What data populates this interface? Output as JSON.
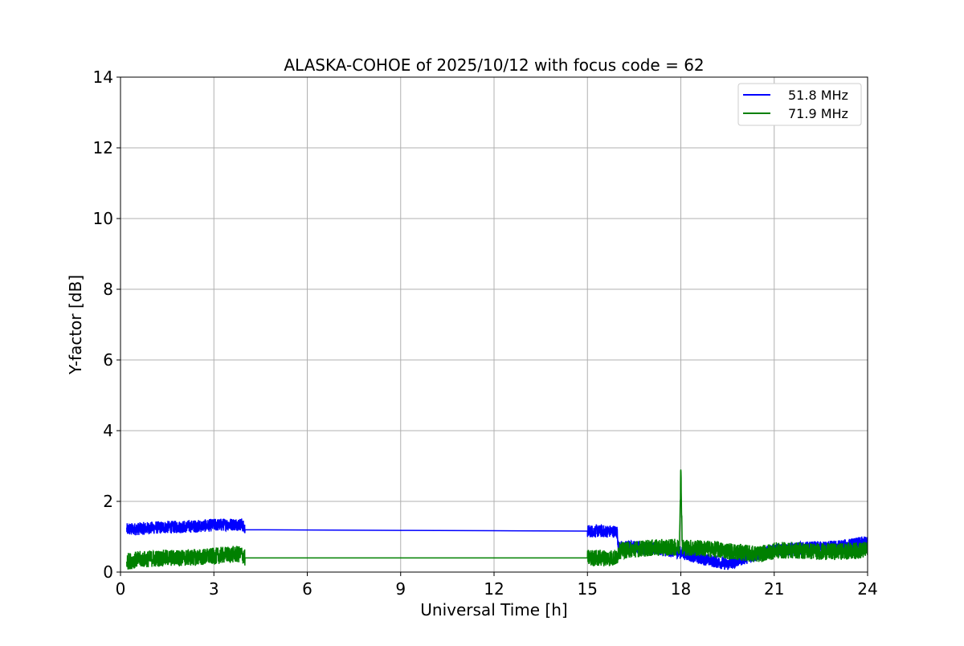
{
  "chart_data": {
    "type": "line",
    "title": "ALASKA-COHOE of 2025/10/12 with focus code = 62",
    "xlabel": "Universal Time [h]",
    "ylabel": "Y-factor [dB]",
    "xlim": [
      0,
      24
    ],
    "ylim": [
      0,
      14
    ],
    "xticks": [
      0,
      3,
      6,
      9,
      12,
      15,
      18,
      21,
      24
    ],
    "yticks": [
      0,
      2,
      4,
      6,
      8,
      10,
      12,
      14
    ],
    "grid": true,
    "legend_position": "top-right",
    "series": [
      {
        "name": "51.8 MHz",
        "color": "#0000ff",
        "noise_band": 0.18,
        "x": [
          0.2,
          0.5,
          1.0,
          1.5,
          2.0,
          2.5,
          3.0,
          3.5,
          3.9,
          4.0,
          6.0,
          9.0,
          12.0,
          15.0,
          15.95,
          16.0,
          16.5,
          17.0,
          17.5,
          18.0,
          18.5,
          19.0,
          19.5,
          20.0,
          20.5,
          21.0,
          21.5,
          22.0,
          22.5,
          23.0,
          23.5,
          24.0
        ],
        "y": [
          1.2,
          1.22,
          1.25,
          1.27,
          1.28,
          1.3,
          1.33,
          1.35,
          1.35,
          1.2,
          1.19,
          1.18,
          1.17,
          1.16,
          1.15,
          0.7,
          0.72,
          0.68,
          0.62,
          0.55,
          0.42,
          0.32,
          0.22,
          0.38,
          0.5,
          0.62,
          0.65,
          0.68,
          0.7,
          0.72,
          0.78,
          0.85
        ]
      },
      {
        "name": "71.9 MHz",
        "color": "#008000",
        "noise_band": 0.24,
        "x": [
          0.2,
          0.5,
          1.0,
          1.5,
          2.0,
          2.5,
          3.0,
          3.5,
          3.9,
          4.0,
          6.0,
          9.0,
          12.0,
          15.0,
          15.95,
          16.0,
          16.5,
          17.0,
          17.5,
          17.95,
          18.0,
          18.05,
          18.5,
          19.0,
          19.5,
          20.0,
          20.5,
          21.0,
          21.5,
          22.0,
          22.5,
          23.0,
          23.5,
          24.0
        ],
        "y": [
          0.3,
          0.35,
          0.38,
          0.4,
          0.4,
          0.42,
          0.45,
          0.5,
          0.5,
          0.4,
          0.4,
          0.4,
          0.4,
          0.4,
          0.4,
          0.6,
          0.65,
          0.68,
          0.7,
          0.7,
          2.9,
          0.7,
          0.68,
          0.65,
          0.6,
          0.55,
          0.5,
          0.6,
          0.62,
          0.6,
          0.58,
          0.58,
          0.6,
          0.62
        ]
      }
    ]
  }
}
